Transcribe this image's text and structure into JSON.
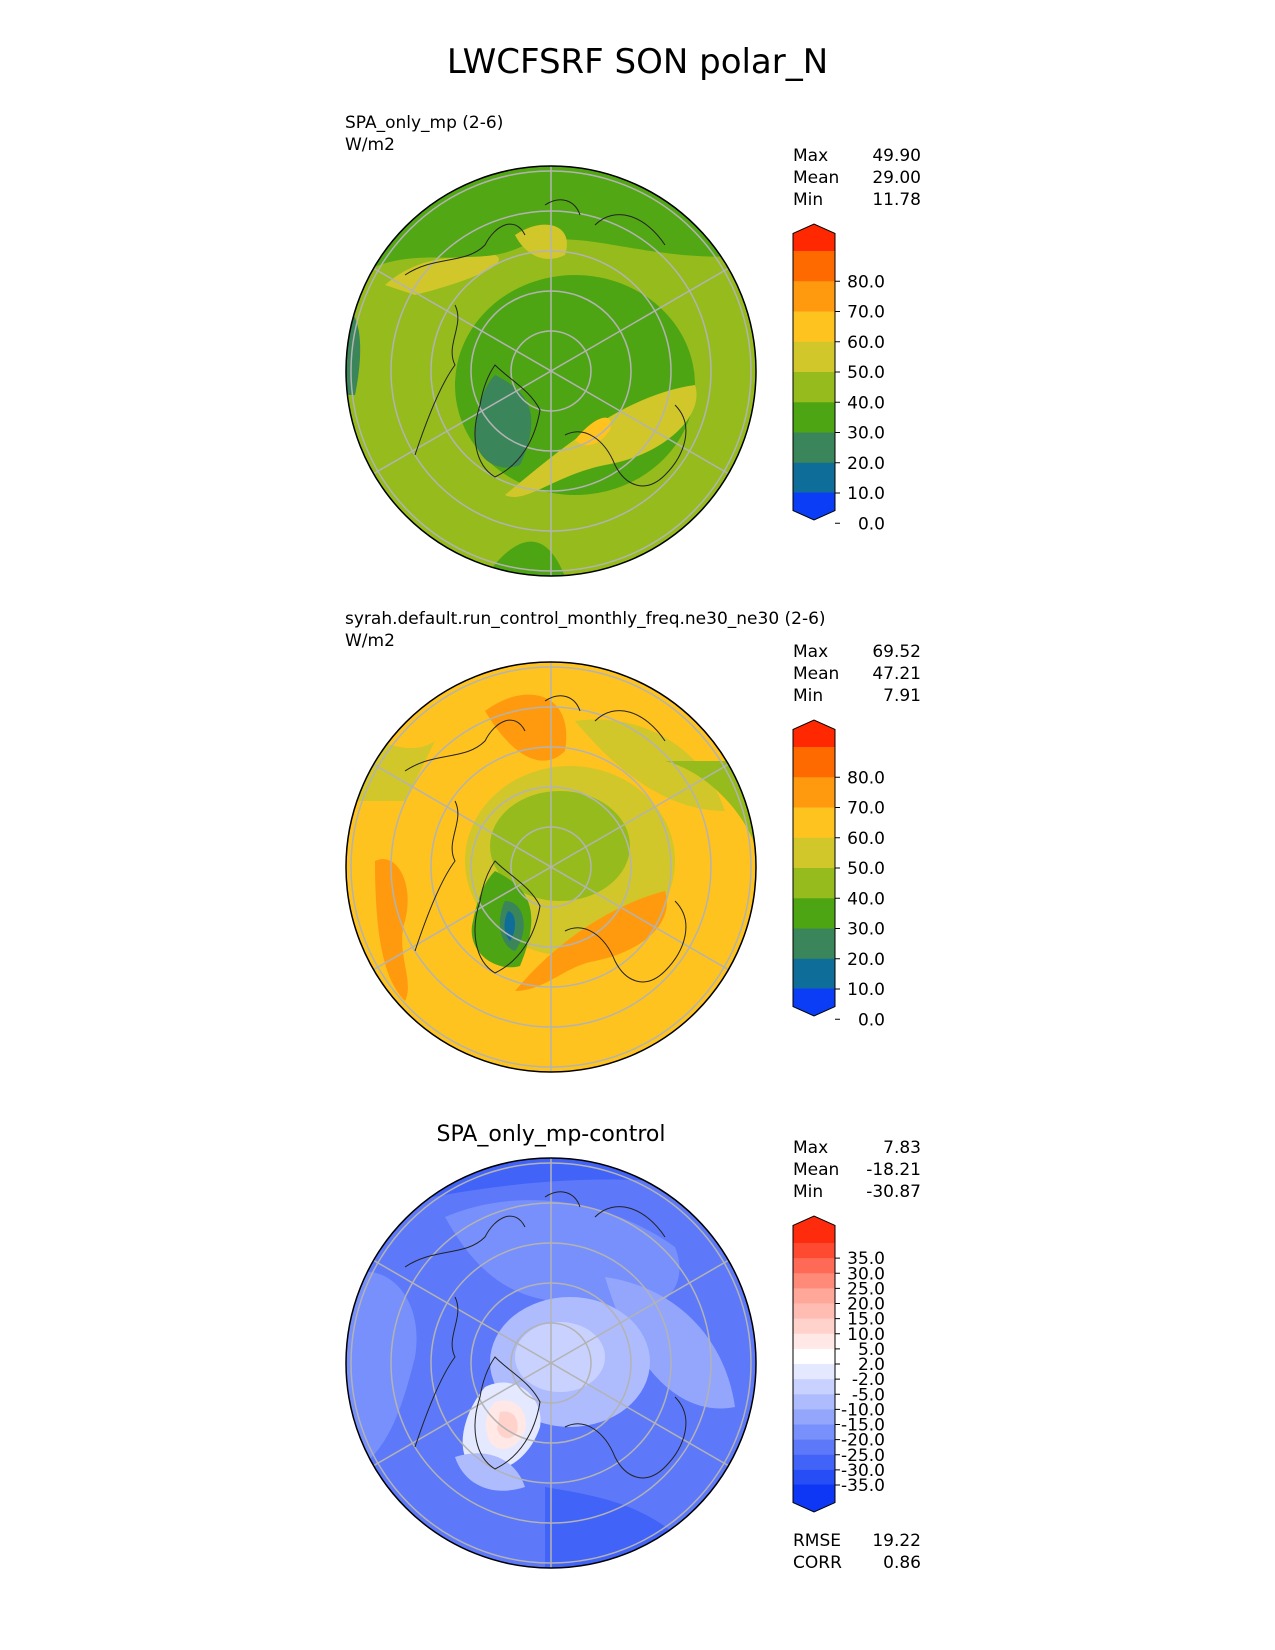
{
  "title": "LWCFSRF SON polar_N",
  "panels": [
    {
      "label_line1": "SPA_only_mp (2-6)",
      "label_line2": "W/m2",
      "stats": [
        [
          "Max",
          "49.90"
        ],
        [
          "Mean",
          "29.00"
        ],
        [
          "Min",
          "11.78"
        ]
      ],
      "colorbar": {
        "ticks": [
          "80.0",
          "70.0",
          "60.0",
          "50.0",
          "40.0",
          "30.0",
          "20.0",
          "10.0",
          "0.0"
        ],
        "colors": [
          "#ff2800",
          "#ff6a00",
          "#ff9a0e",
          "#fec31f",
          "#d1c72a",
          "#95bc1c",
          "#4ea514",
          "#3a8559",
          "#0f6e99",
          "#0a3df5"
        ]
      }
    },
    {
      "label_line1": "syrah.default.run_control_monthly_freq.ne30_ne30 (2-6)",
      "label_line2": "W/m2",
      "stats": [
        [
          "Max",
          "69.52"
        ],
        [
          "Mean",
          "47.21"
        ],
        [
          "Min",
          "7.91"
        ]
      ],
      "colorbar": {
        "ticks": [
          "80.0",
          "70.0",
          "60.0",
          "50.0",
          "40.0",
          "30.0",
          "20.0",
          "10.0",
          "0.0"
        ],
        "colors": [
          "#ff2800",
          "#ff6a00",
          "#ff9a0e",
          "#fec31f",
          "#d1c72a",
          "#95bc1c",
          "#4ea514",
          "#3a8559",
          "#0f6e99",
          "#0a3df5"
        ]
      }
    },
    {
      "title": "SPA_only_mp-control",
      "stats": [
        [
          "Max",
          "7.83"
        ],
        [
          "Mean",
          "-18.21"
        ],
        [
          "Min",
          "-30.87"
        ]
      ],
      "error_stats": [
        [
          "RMSE",
          "19.22"
        ],
        [
          "CORR",
          "0.86"
        ]
      ],
      "colorbar": {
        "ticks": [
          "35.0",
          "30.0",
          "25.0",
          "20.0",
          "15.0",
          "10.0",
          "5.0",
          "2.0",
          "-2.0",
          "-5.0",
          "-10.0",
          "-15.0",
          "-20.0",
          "-25.0",
          "-30.0",
          "-35.0"
        ],
        "colors": [
          "#fe2b0c",
          "#ff4a32",
          "#ff6a56",
          "#ff8a78",
          "#ffa89a",
          "#ffbcb2",
          "#ffd2cc",
          "#ffe8e5",
          "#ffffff",
          "#e4e9ff",
          "#c9d2fe",
          "#aebcfd",
          "#93a6fc",
          "#7890fb",
          "#5d79fa",
          "#4263f8",
          "#274df7",
          "#0e37f5"
        ]
      }
    }
  ],
  "chart_data": [
    {
      "type": "heatmap",
      "title": "SPA_only_mp (2-6)",
      "units": "W/m2",
      "projection": "north polar stereographic",
      "levels": [
        0,
        10,
        20,
        30,
        40,
        50,
        60,
        70,
        80
      ],
      "max": 49.9,
      "mean": 29.0,
      "min": 11.78
    },
    {
      "type": "heatmap",
      "title": "syrah.default.run_control_monthly_freq.ne30_ne30 (2-6)",
      "units": "W/m2",
      "projection": "north polar stereographic",
      "levels": [
        0,
        10,
        20,
        30,
        40,
        50,
        60,
        70,
        80
      ],
      "max": 69.52,
      "mean": 47.21,
      "min": 7.91
    },
    {
      "type": "heatmap",
      "title": "SPA_only_mp-control",
      "projection": "north polar stereographic",
      "levels": [
        -35,
        -30,
        -25,
        -20,
        -15,
        -10,
        -5,
        -2,
        2,
        5,
        10,
        15,
        20,
        25,
        30,
        35
      ],
      "max": 7.83,
      "mean": -18.21,
      "min": -30.87,
      "rmse": 19.22,
      "corr": 0.86
    }
  ]
}
